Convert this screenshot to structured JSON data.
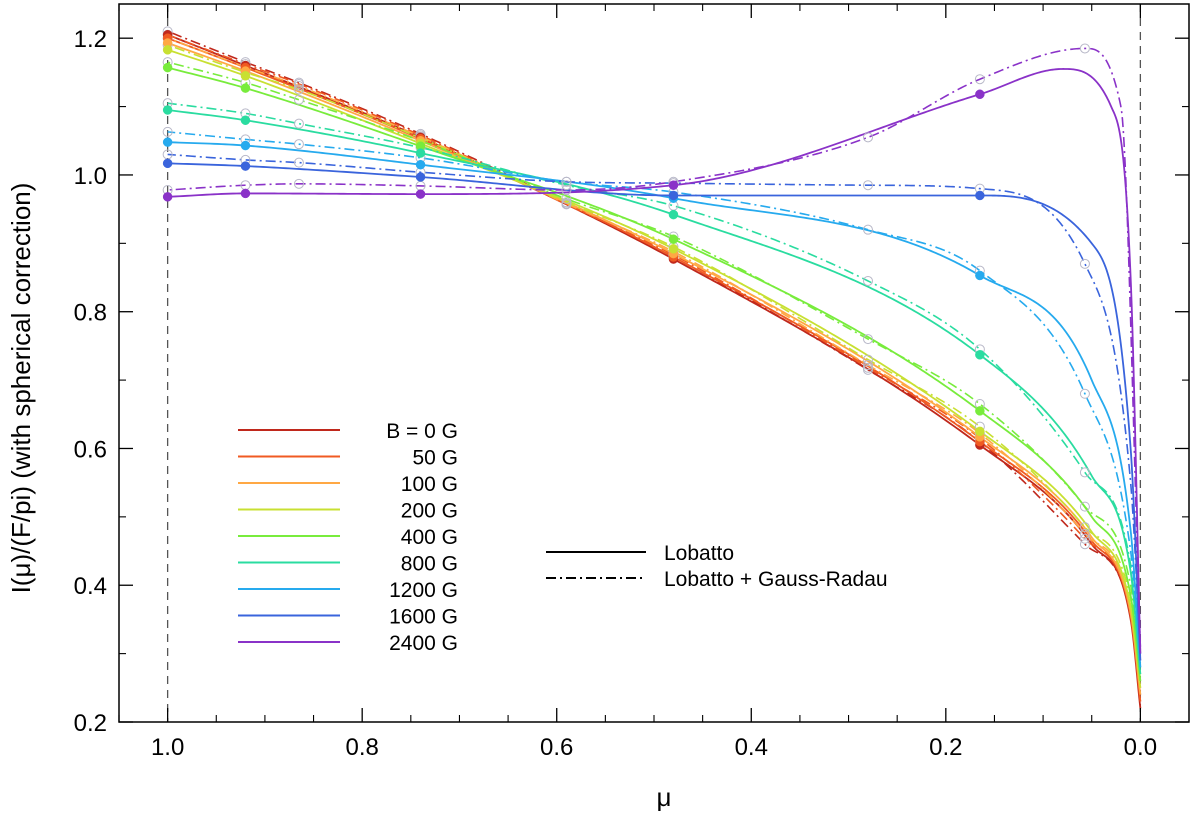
{
  "chart_data": {
    "type": "line",
    "xlabel": "μ",
    "ylabel": "I(μ)/(F/pi) (with spherical correction)",
    "xlim": [
      1.05,
      -0.05
    ],
    "ylim": [
      0.2,
      1.25
    ],
    "x_ticks": [
      1.0,
      0.8,
      0.6,
      0.4,
      0.2,
      0.0
    ],
    "y_ticks": [
      0.2,
      0.4,
      0.6,
      0.8,
      1.0,
      1.2
    ],
    "x_tick_labels": [
      "1.0",
      "0.8",
      "0.6",
      "0.4",
      "0.2",
      "0.0"
    ],
    "y_tick_labels": [
      "0.2",
      "0.4",
      "0.6",
      "0.8",
      "1.0",
      "1.2"
    ],
    "reference_lines_x": [
      1.0,
      0.0
    ],
    "legend_position": "lower-left",
    "style_legend": [
      {
        "label": "Lobatto",
        "dash": "solid"
      },
      {
        "label": "Lobatto + Gauss-Radau",
        "dash": "dash-dot"
      }
    ],
    "lobatto_nodes": [
      1.0,
      0.92,
      0.74,
      0.48,
      0.165
    ],
    "radau_nodes": [
      1.0,
      0.92,
      0.865,
      0.74,
      0.59,
      0.48,
      0.28,
      0.165,
      0.057
    ],
    "series": [
      {
        "name": "B =  0 G",
        "color": "#c0281c",
        "x": [
          1.0,
          0.92,
          0.74,
          0.48,
          0.165,
          0.05,
          0.01,
          0.0
        ],
        "y": [
          1.205,
          1.16,
          1.055,
          0.877,
          0.605,
          0.46,
          0.35,
          0.22
        ],
        "x_dashed": [
          1.0,
          0.92,
          0.865,
          0.74,
          0.59,
          0.48,
          0.28,
          0.165,
          0.057,
          0.01,
          0.0
        ],
        "y_dashed": [
          1.21,
          1.165,
          1.135,
          1.06,
          0.958,
          0.88,
          0.715,
          0.61,
          0.46,
          0.36,
          0.23
        ]
      },
      {
        "name": "50 G",
        "color": "#f05a22",
        "x": [
          1.0,
          0.92,
          0.74,
          0.48,
          0.165,
          0.05,
          0.01,
          0.0
        ],
        "y": [
          1.2,
          1.157,
          1.053,
          0.88,
          0.61,
          0.465,
          0.355,
          0.23
        ],
        "x_dashed": [
          1.0,
          0.92,
          0.865,
          0.74,
          0.59,
          0.48,
          0.28,
          0.165,
          0.057,
          0.01,
          0.0
        ],
        "y_dashed": [
          1.205,
          1.162,
          1.133,
          1.058,
          0.957,
          0.883,
          0.718,
          0.615,
          0.468,
          0.365,
          0.24
        ]
      },
      {
        "name": "100 G",
        "color": "#ffa844",
        "x": [
          1.0,
          0.92,
          0.74,
          0.48,
          0.165,
          0.05,
          0.01,
          0.0
        ],
        "y": [
          1.193,
          1.152,
          1.05,
          0.885,
          0.617,
          0.47,
          0.36,
          0.24
        ],
        "x_dashed": [
          1.0,
          0.92,
          0.865,
          0.74,
          0.59,
          0.48,
          0.28,
          0.165,
          0.057,
          0.01,
          0.0
        ],
        "y_dashed": [
          1.2,
          1.158,
          1.13,
          1.056,
          0.958,
          0.888,
          0.722,
          0.622,
          0.475,
          0.37,
          0.25
        ]
      },
      {
        "name": "200 G",
        "color": "#c8e032",
        "x": [
          1.0,
          0.92,
          0.74,
          0.48,
          0.165,
          0.05,
          0.01,
          0.0
        ],
        "y": [
          1.183,
          1.145,
          1.046,
          0.892,
          0.625,
          0.478,
          0.368,
          0.25
        ],
        "x_dashed": [
          1.0,
          0.92,
          0.865,
          0.74,
          0.59,
          0.48,
          0.28,
          0.165,
          0.057,
          0.01,
          0.0
        ],
        "y_dashed": [
          1.19,
          1.15,
          1.125,
          1.054,
          0.96,
          0.895,
          0.73,
          0.632,
          0.485,
          0.38,
          0.26
        ]
      },
      {
        "name": "400 G",
        "color": "#78ec3c",
        "x": [
          1.0,
          0.92,
          0.74,
          0.48,
          0.165,
          0.05,
          0.01,
          0.0
        ],
        "y": [
          1.157,
          1.127,
          1.042,
          0.906,
          0.655,
          0.5,
          0.385,
          0.26
        ],
        "x_dashed": [
          1.0,
          0.92,
          0.865,
          0.74,
          0.59,
          0.48,
          0.28,
          0.165,
          0.057,
          0.01,
          0.0
        ],
        "y_dashed": [
          1.165,
          1.135,
          1.11,
          1.05,
          0.965,
          0.91,
          0.76,
          0.665,
          0.515,
          0.4,
          0.27
        ]
      },
      {
        "name": "800 G",
        "color": "#2adca0",
        "x": [
          1.0,
          0.92,
          0.74,
          0.48,
          0.165,
          0.05,
          0.01,
          0.0
        ],
        "y": [
          1.095,
          1.08,
          1.032,
          0.942,
          0.737,
          0.56,
          0.42,
          0.27
        ],
        "x_dashed": [
          1.0,
          0.92,
          0.865,
          0.74,
          0.59,
          0.48,
          0.28,
          0.165,
          0.057,
          0.01,
          0.0
        ],
        "y_dashed": [
          1.105,
          1.09,
          1.075,
          1.04,
          0.985,
          0.955,
          0.845,
          0.745,
          0.565,
          0.43,
          0.28
        ]
      },
      {
        "name": "1200 G",
        "color": "#26aaee",
        "x": [
          1.0,
          0.92,
          0.74,
          0.48,
          0.165,
          0.05,
          0.01,
          0.0
        ],
        "y": [
          1.048,
          1.043,
          1.015,
          0.966,
          0.853,
          0.7,
          0.48,
          0.28
        ],
        "x_dashed": [
          1.0,
          0.92,
          0.865,
          0.74,
          0.59,
          0.48,
          0.28,
          0.165,
          0.057,
          0.01,
          0.0
        ],
        "y_dashed": [
          1.063,
          1.052,
          1.045,
          1.025,
          0.99,
          0.975,
          0.92,
          0.86,
          0.68,
          0.45,
          0.29
        ]
      },
      {
        "name": "1600 G",
        "color": "#3a64dc",
        "x": [
          1.0,
          0.92,
          0.74,
          0.48,
          0.165,
          0.05,
          0.01,
          0.0
        ],
        "y": [
          1.017,
          1.013,
          0.997,
          0.97,
          0.97,
          0.9,
          0.6,
          0.29
        ],
        "x_dashed": [
          1.0,
          0.92,
          0.865,
          0.74,
          0.59,
          0.48,
          0.28,
          0.165,
          0.057,
          0.01,
          0.0
        ],
        "y_dashed": [
          1.03,
          1.022,
          1.018,
          1.004,
          0.99,
          0.988,
          0.985,
          0.98,
          0.87,
          0.55,
          0.3
        ]
      },
      {
        "name": "2400 G",
        "color": "#8a32c8",
        "x": [
          1.0,
          0.92,
          0.74,
          0.48,
          0.165,
          0.08,
          0.03,
          0.01,
          0.0
        ],
        "y": [
          0.968,
          0.973,
          0.972,
          0.985,
          1.118,
          1.155,
          1.1,
          0.85,
          0.3
        ],
        "x_dashed": [
          1.0,
          0.92,
          0.865,
          0.74,
          0.59,
          0.48,
          0.28,
          0.165,
          0.057,
          0.02,
          0.0
        ],
        "y_dashed": [
          0.978,
          0.985,
          0.987,
          0.984,
          0.978,
          0.99,
          1.055,
          1.14,
          1.185,
          1.1,
          0.31
        ]
      }
    ]
  }
}
